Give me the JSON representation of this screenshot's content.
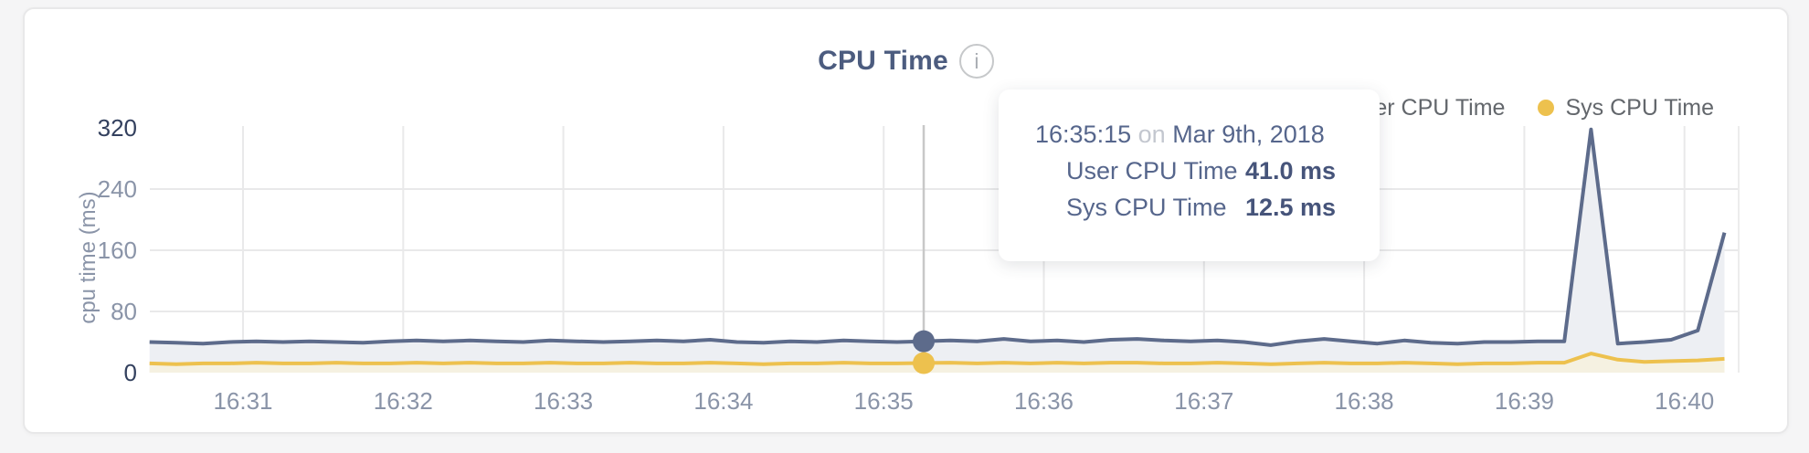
{
  "title": "CPU Time",
  "icons": {
    "info": "i"
  },
  "legend": [
    {
      "label": "User CPU Time",
      "color": "#5d6b8b"
    },
    {
      "label": "Sys CPU Time",
      "color": "#edc14e"
    }
  ],
  "tooltip": {
    "time": "16:35:15",
    "connector": "on",
    "date": "Mar 9th, 2018",
    "hover_index": 29,
    "rows": [
      {
        "series": "User CPU Time",
        "value": "41.0 ms",
        "color": "#5d6b8b"
      },
      {
        "series": "Sys CPU Time",
        "value": "12.5 ms",
        "color": "#edc14e"
      }
    ]
  },
  "chart_data": {
    "type": "area",
    "title": "CPU Time",
    "xlabel": "",
    "ylabel": "cpu time (ms)",
    "ylim": [
      0,
      320
    ],
    "y_ticks": [
      0,
      80,
      160,
      240,
      320
    ],
    "y_gridlines": [
      80,
      160,
      240
    ],
    "x_ticks": [
      "16:31",
      "16:32",
      "16:33",
      "16:34",
      "16:35",
      "16:36",
      "16:37",
      "16:38",
      "16:39",
      "16:40"
    ],
    "x_start": "16:30:25",
    "x_interval_seconds": 10,
    "legend_position": "top-right",
    "grid": true,
    "series": [
      {
        "name": "User CPU Time",
        "color": "#5d6b8b",
        "fill": "#edeff3",
        "values": [
          40,
          39,
          38,
          40,
          41,
          40,
          41,
          40,
          39,
          41,
          42,
          41,
          42,
          41,
          40,
          42,
          41,
          40,
          41,
          42,
          41,
          43,
          40,
          39,
          41,
          40,
          42,
          41,
          40,
          41,
          42,
          41,
          44,
          41,
          42,
          40,
          43,
          44,
          42,
          41,
          42,
          40,
          36,
          41,
          44,
          41,
          38,
          42,
          39,
          38,
          40,
          40,
          41,
          41,
          318,
          38,
          40,
          43,
          55,
          183
        ]
      },
      {
        "name": "Sys CPU Time",
        "color": "#edc14e",
        "fill": "#f5f1e1",
        "values": [
          12,
          11,
          12,
          12,
          13,
          12,
          12,
          13,
          12,
          12,
          13,
          12,
          13,
          12,
          12,
          13,
          12,
          12,
          13,
          12,
          12,
          13,
          12,
          11,
          12,
          12,
          13,
          12,
          12,
          12.5,
          13,
          12,
          13,
          12,
          13,
          12,
          13,
          13,
          12,
          12,
          13,
          12,
          11,
          12,
          13,
          12,
          12,
          13,
          12,
          11,
          12,
          12,
          13,
          13,
          25,
          17,
          14,
          15,
          16,
          18
        ]
      }
    ]
  }
}
